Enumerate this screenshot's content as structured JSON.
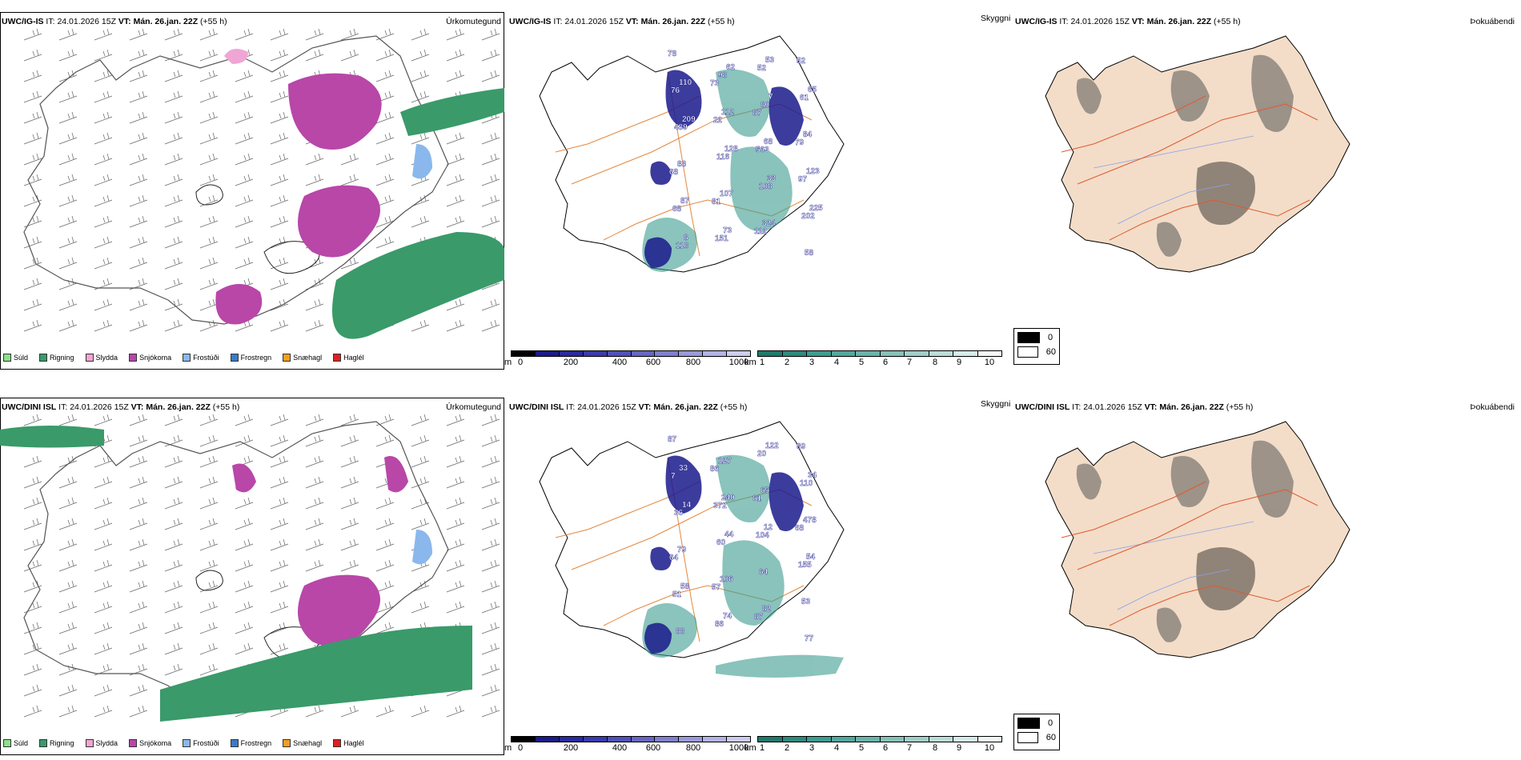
{
  "colors": {
    "rain": "#3a9a6a",
    "snow": "#b847a8",
    "sleet": "#f0a6d4",
    "drizzle": "#8be08b",
    "freezing_drizzle": "#8ab8ec",
    "freezing_rain": "#3a7ac8",
    "snow_pellets": "#f0a020",
    "hail": "#e02020",
    "cloud_base_dark": "#1a1a8c",
    "visibility_teal": "#3c9c90",
    "roads": "#e3883e",
    "land_fog": "#f3ddc8",
    "rivers": "#8ca0ea"
  },
  "rows": [
    {
      "model": "UWC/IG-IS",
      "it_label": "IT:",
      "it_value": "24.01.2026 15Z",
      "vt_label": "VT:",
      "vt_value": "Mán. 26.jan. 22Z",
      "lead": "(+55 h)",
      "precip_title": "Úrkomutegund",
      "visibility_title": "Skyggni",
      "fog_title": "Þokuábendi",
      "labels": [
        "78",
        "73",
        "87",
        "79",
        "68",
        "81",
        "112",
        "52",
        "76",
        "22",
        "563",
        "97",
        "68",
        "151",
        "52",
        "61",
        "489",
        "116",
        "108",
        "202",
        "118",
        "98",
        "80",
        "84",
        "88",
        "107",
        "324",
        "58",
        "110",
        "112",
        "68",
        "123",
        "87",
        "73",
        "53",
        "65",
        "209",
        "128",
        "33",
        "225",
        "8",
        "62",
        "7"
      ]
    },
    {
      "model": "UWC/DINI ISL",
      "it_label": "IT:",
      "it_value": "24.01.2026 15Z",
      "vt_label": "VT:",
      "vt_value": "Mán. 26.jan. 22Z",
      "lead": "(+55 h)",
      "precip_title": "Úrkomutegund",
      "visibility_title": "Skyggni",
      "fog_title": "Þokuábendi",
      "labels": [
        "87",
        "86",
        "61",
        "68",
        "64",
        "57",
        "87",
        "89",
        "7",
        "372",
        "104",
        "155",
        "51",
        "86",
        "20",
        "110",
        "36",
        "60",
        "64",
        "53",
        "88",
        "127",
        "65",
        "478",
        "79",
        "106",
        "82",
        "77",
        "33",
        "240",
        "12",
        "54",
        "58",
        "74",
        "122",
        "34",
        "14",
        "44"
      ]
    }
  ],
  "precip_legend": [
    "Súld",
    "Rigning",
    "Slydda",
    "Snjókoma",
    "Frostúði",
    "Frostregn",
    "Snæhagl",
    "Haglél"
  ],
  "cloud_base_scale": {
    "unit": "m",
    "ticks": [
      "0",
      "200",
      "400",
      "600",
      "800",
      "1000"
    ]
  },
  "visibility_scale": {
    "unit": "km",
    "ticks": [
      "1",
      "2",
      "3",
      "4",
      "5",
      "6",
      "7",
      "8",
      "9",
      "10"
    ]
  },
  "fog_legend": {
    "high": "0",
    "low": "60"
  }
}
